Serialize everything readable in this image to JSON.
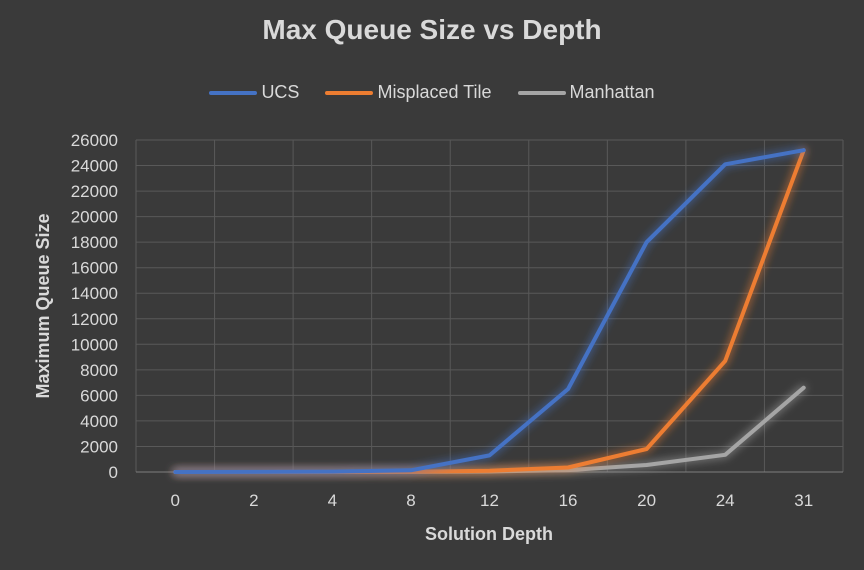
{
  "chart_data": {
    "type": "line",
    "title": "Max Queue Size vs Depth",
    "xlabel": "Solution Depth",
    "ylabel": "Maximum Queue Size",
    "categories": [
      "0",
      "2",
      "4",
      "8",
      "12",
      "16",
      "20",
      "24",
      "31"
    ],
    "yticks": [
      0,
      2000,
      4000,
      6000,
      8000,
      10000,
      12000,
      14000,
      16000,
      18000,
      20000,
      22000,
      24000,
      26000
    ],
    "ylim": [
      0,
      26000
    ],
    "grid": true,
    "legend_position": "top",
    "series": [
      {
        "name": "UCS",
        "color": "#4472c4",
        "values": [
          0,
          5,
          30,
          130,
          1300,
          6500,
          18000,
          24100,
          25200
        ]
      },
      {
        "name": "Misplaced Tile",
        "color": "#ed7d31",
        "values": [
          0,
          1,
          5,
          20,
          100,
          350,
          1800,
          8700,
          25200
        ]
      },
      {
        "name": "Manhattan",
        "color": "#a5a5a5",
        "values": [
          0,
          1,
          3,
          10,
          40,
          150,
          550,
          1350,
          6600
        ]
      }
    ]
  }
}
